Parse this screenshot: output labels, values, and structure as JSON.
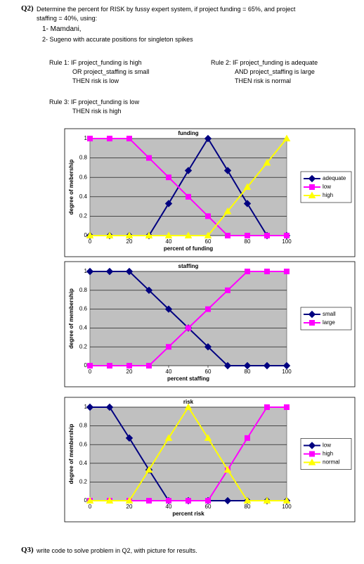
{
  "question": {
    "label": "Q2)",
    "text": [
      "Determine the percent for RISK by fussy expert system, if project funding = 65%, and project",
      "staffing = 40%, using:"
    ],
    "methods": [
      "1- Mamdani,",
      "2- Sugeno with accurate positions for singleton spikes"
    ]
  },
  "rules": [
    {
      "lines": [
        "Rule 1: IF project_funding is high",
        "OR project_staffing is small",
        "THEN risk is low"
      ]
    },
    {
      "lines": [
        "Rule 2: IF project_funding is adequate",
        "AND project_staffing is large",
        "THEN risk is normal"
      ]
    },
    {
      "lines": [
        "Rule 3: IF project_funding is low",
        "THEN risk is high"
      ]
    }
  ],
  "chart_data": [
    {
      "type": "line",
      "title": "funding",
      "x_label": "percent of funding",
      "y_label": "degree of mebership",
      "x": [
        0,
        10,
        20,
        30,
        40,
        50,
        60,
        70,
        80,
        90,
        100
      ],
      "xlim": [
        0,
        100
      ],
      "xticks": [
        0,
        20,
        40,
        60,
        80,
        100
      ],
      "ylim": [
        0,
        1
      ],
      "yticks": [
        0,
        0.2,
        0.4,
        0.6,
        0.8,
        1
      ],
      "grid": true,
      "legend": "right",
      "series": [
        {
          "name": "adequate",
          "color": "#000080",
          "marker": "diamond",
          "values": [
            0,
            0,
            0,
            0,
            0.33,
            0.67,
            1,
            0.67,
            0.33,
            0,
            0
          ]
        },
        {
          "name": "low",
          "color": "#ff00ff",
          "marker": "square",
          "values": [
            1,
            1,
            1,
            0.8,
            0.6,
            0.4,
            0.2,
            0,
            0,
            0,
            0
          ]
        },
        {
          "name": "high",
          "color": "#ffff00",
          "marker": "triangle",
          "values": [
            0,
            0,
            0,
            0,
            0,
            0,
            0,
            0.25,
            0.5,
            0.75,
            1
          ]
        }
      ]
    },
    {
      "type": "line",
      "title": "staffing",
      "x_label": "percent staffing",
      "y_label": "degree of membership",
      "x": [
        0,
        10,
        20,
        30,
        40,
        50,
        60,
        70,
        80,
        90,
        100
      ],
      "xlim": [
        0,
        100
      ],
      "xticks": [
        0,
        20,
        40,
        60,
        80,
        100
      ],
      "ylim": [
        0,
        1
      ],
      "yticks": [
        0,
        0.2,
        0.4,
        0.6,
        0.8,
        1
      ],
      "grid": true,
      "legend": "right",
      "series": [
        {
          "name": "small",
          "color": "#000080",
          "marker": "diamond",
          "values": [
            1,
            1,
            1,
            0.8,
            0.6,
            0.4,
            0.2,
            0,
            0,
            0,
            0
          ]
        },
        {
          "name": "large",
          "color": "#ff00ff",
          "marker": "square",
          "values": [
            0,
            0,
            0,
            0,
            0.2,
            0.4,
            0.6,
            0.8,
            1,
            1,
            1
          ]
        }
      ]
    },
    {
      "type": "line",
      "title": "risk",
      "x_label": "percent risk",
      "y_label": "degree of membership",
      "x": [
        0,
        10,
        20,
        30,
        40,
        50,
        60,
        70,
        80,
        90,
        100
      ],
      "xlim": [
        0,
        100
      ],
      "xticks": [
        0,
        20,
        40,
        60,
        80,
        100
      ],
      "ylim": [
        0,
        1
      ],
      "yticks": [
        0,
        0.2,
        0.4,
        0.6,
        0.8,
        1
      ],
      "grid": true,
      "legend": "right",
      "series": [
        {
          "name": "low",
          "color": "#000080",
          "marker": "diamond",
          "values": [
            1,
            1,
            0.67,
            0.33,
            0,
            0,
            0,
            0,
            0,
            0,
            0
          ]
        },
        {
          "name": "high",
          "color": "#ff00ff",
          "marker": "square",
          "values": [
            0,
            0,
            0,
            0,
            0,
            0,
            0,
            0.33,
            0.67,
            1,
            1
          ]
        },
        {
          "name": "normal",
          "color": "#ffff00",
          "marker": "triangle",
          "values": [
            0,
            0,
            0,
            0.33,
            0.67,
            1,
            0.67,
            0.33,
            0,
            0,
            0
          ]
        }
      ]
    }
  ],
  "footer": {
    "label": "Q3)",
    "text": "write code to solve problem in Q2, with picture for results."
  }
}
